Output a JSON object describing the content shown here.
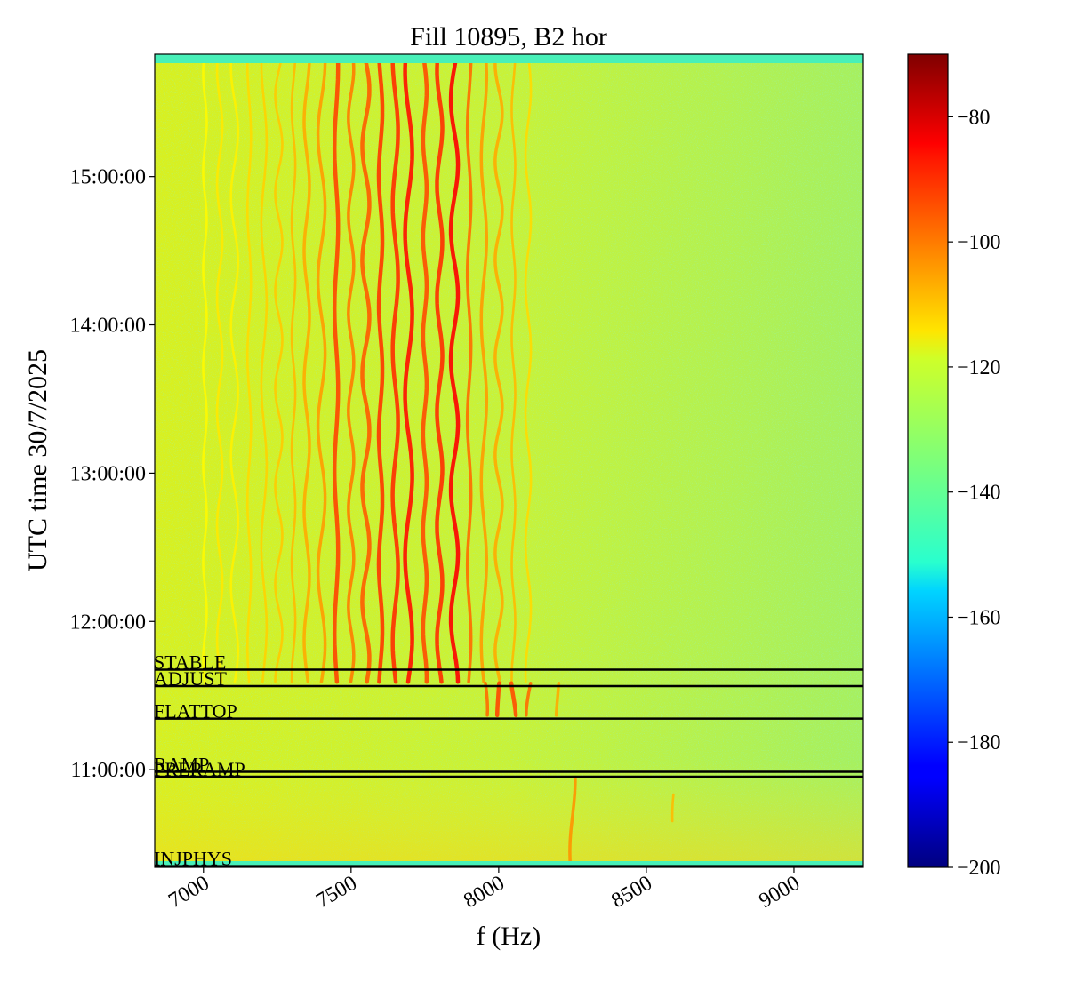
{
  "chart_data": {
    "type": "heatmap",
    "title": "Fill 10895, B2 hor",
    "xlabel": "f (Hz)",
    "ylabel": "UTC time 30/7/2025",
    "xlim": [
      6835,
      9235
    ],
    "ylim": [
      "10:20:30",
      "15:49:30"
    ],
    "x_ticks": [
      {
        "value": 7000,
        "label": "7000"
      },
      {
        "value": 7500,
        "label": "7500"
      },
      {
        "value": 8000,
        "label": "8000"
      },
      {
        "value": 8500,
        "label": "8500"
      },
      {
        "value": 9000,
        "label": "9000"
      }
    ],
    "y_ticks": [
      {
        "value": "11:00:00",
        "label": "11:00:00"
      },
      {
        "value": "12:00:00",
        "label": "12:00:00"
      },
      {
        "value": "13:00:00",
        "label": "13:00:00"
      },
      {
        "value": "14:00:00",
        "label": "14:00:00"
      },
      {
        "value": "15:00:00",
        "label": "15:00:00"
      }
    ],
    "colorbar": {
      "colormap": "jet",
      "range": [
        -200,
        -70
      ],
      "ticks": [
        {
          "value": -80,
          "label": "−80"
        },
        {
          "value": -100,
          "label": "−100"
        },
        {
          "value": -120,
          "label": "−120"
        },
        {
          "value": -140,
          "label": "−140"
        },
        {
          "value": -160,
          "label": "−160"
        },
        {
          "value": -180,
          "label": "−180"
        },
        {
          "value": -200,
          "label": "−200"
        }
      ]
    },
    "background_level": -125,
    "beam_modes": [
      {
        "label": "STABLE",
        "time": "11:40:30"
      },
      {
        "label": "ADJUST",
        "time": "11:33:50"
      },
      {
        "label": "FLATTOP",
        "time": "11:20:40"
      },
      {
        "label": "RAMP",
        "time": "10:59:10"
      },
      {
        "label": "PRERAMP",
        "time": "10:57:10"
      },
      {
        "label": "INJPHYS",
        "time": "10:21:00"
      }
    ],
    "spectral_lines": [
      {
        "f": 7005,
        "start": "11:35:00",
        "end": "15:48:00",
        "level": -118
      },
      {
        "f": 7055,
        "start": "11:35:00",
        "end": "15:48:00",
        "level": -116
      },
      {
        "f": 7105,
        "start": "11:35:00",
        "end": "15:48:00",
        "level": -117
      },
      {
        "f": 7155,
        "start": "11:35:00",
        "end": "15:48:00",
        "level": -114
      },
      {
        "f": 7205,
        "start": "11:35:00",
        "end": "15:48:00",
        "level": -113
      },
      {
        "f": 7255,
        "start": "11:35:00",
        "end": "15:48:00",
        "level": -112
      },
      {
        "f": 7305,
        "start": "11:35:00",
        "end": "15:48:00",
        "level": -110
      },
      {
        "f": 7350,
        "start": "11:35:00",
        "end": "15:48:00",
        "level": -108
      },
      {
        "f": 7400,
        "start": "11:35:00",
        "end": "15:48:00",
        "level": -106
      },
      {
        "f": 7450,
        "start": "11:35:00",
        "end": "15:48:00",
        "level": -95
      },
      {
        "f": 7500,
        "start": "11:35:00",
        "end": "15:48:00",
        "level": -102
      },
      {
        "f": 7550,
        "start": "11:35:00",
        "end": "15:48:00",
        "level": -98
      },
      {
        "f": 7600,
        "start": "11:35:00",
        "end": "15:48:00",
        "level": -93
      },
      {
        "f": 7650,
        "start": "11:35:00",
        "end": "15:48:00",
        "level": -92
      },
      {
        "f": 7695,
        "start": "11:35:00",
        "end": "15:48:00",
        "level": -88
      },
      {
        "f": 7750,
        "start": "11:35:00",
        "end": "15:48:00",
        "level": -96
      },
      {
        "f": 7800,
        "start": "11:35:00",
        "end": "15:48:00",
        "level": -92
      },
      {
        "f": 7850,
        "start": "11:35:00",
        "end": "15:48:00",
        "level": -86
      },
      {
        "f": 7900,
        "start": "11:35:00",
        "end": "15:48:00",
        "level": -100
      },
      {
        "f": 7950,
        "start": "11:35:00",
        "end": "15:48:00",
        "level": -106
      },
      {
        "f": 8000,
        "start": "11:35:00",
        "end": "15:48:00",
        "level": -108
      },
      {
        "f": 8050,
        "start": "11:35:00",
        "end": "15:48:00",
        "level": -110
      },
      {
        "f": 8100,
        "start": "11:35:00",
        "end": "15:48:00",
        "level": -114
      },
      {
        "f": 7950,
        "start": "11:21:00",
        "end": "11:35:00",
        "level": -100
      },
      {
        "f": 8000,
        "start": "11:21:00",
        "end": "11:35:00",
        "level": -95
      },
      {
        "f": 8050,
        "start": "11:21:00",
        "end": "11:35:00",
        "level": -96
      },
      {
        "f": 8105,
        "start": "11:21:00",
        "end": "11:35:00",
        "level": -100
      },
      {
        "f": 8200,
        "start": "11:21:00",
        "end": "11:35:00",
        "level": -108
      },
      {
        "f": 8250,
        "start": "10:21:00",
        "end": "10:57:00",
        "level": -105
      },
      {
        "f": 8600,
        "start": "10:38:00",
        "end": "10:50:00",
        "level": -110
      }
    ]
  }
}
